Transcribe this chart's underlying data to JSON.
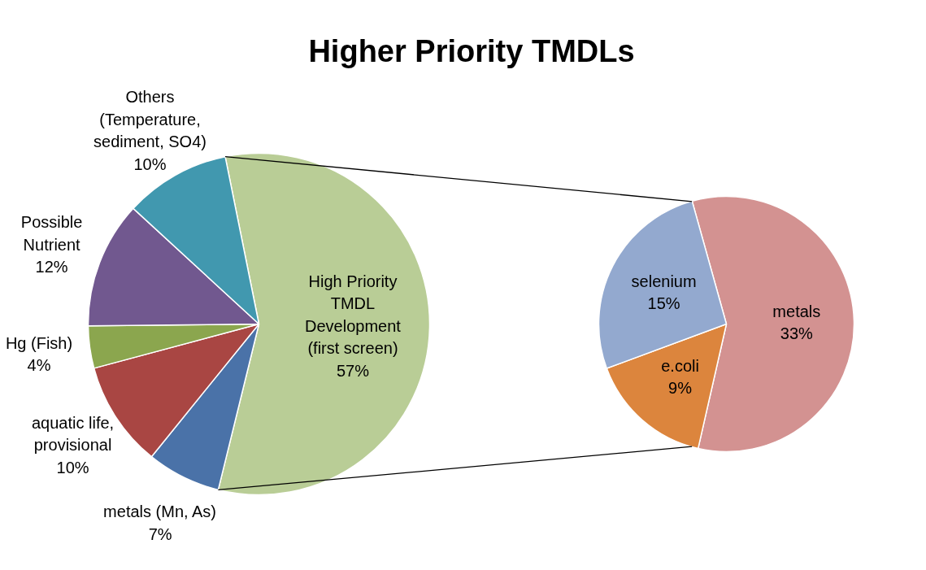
{
  "chart_data": [
    {
      "type": "pie",
      "title": "Higher Priority TMDLs",
      "categories": [
        "High Priority TMDL Development (first screen)",
        "metals (Mn, As)",
        "aquatic life, provisional",
        "Hg (Fish)",
        "Possible Nutrient",
        "Others (Temperature, sediment, SO4)"
      ],
      "values": [
        57,
        7,
        10,
        4,
        12,
        10
      ],
      "value_labels": [
        "57%",
        "7%",
        "10%",
        "4%",
        "12%",
        "10%"
      ],
      "colors": [
        "#b9cd96",
        "#4a72a8",
        "#a94643",
        "#8ba64e",
        "#71588f",
        "#4198af"
      ]
    },
    {
      "type": "pie",
      "categories": [
        "metals",
        "e.coli",
        "selenium"
      ],
      "values": [
        33,
        9,
        15
      ],
      "value_labels": [
        "33%",
        "9%",
        "15%"
      ],
      "colors": [
        "#d39291",
        "#dc853d",
        "#93a9cf"
      ]
    }
  ]
}
